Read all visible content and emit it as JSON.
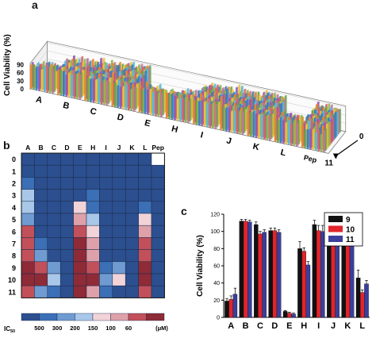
{
  "panels": {
    "a": "a",
    "b": "b",
    "c": "c"
  },
  "colors": {
    "ic50_scale": [
      "#2c4f8f",
      "#3b6fb6",
      "#6f9bd1",
      "#a9c7e8",
      "#f1d3d8",
      "#dea1aa",
      "#c2505a",
      "#8e2b37"
    ],
    "series_9": "#111111",
    "series_10": "#e0252b",
    "series_11": "#3a3f9c"
  },
  "chart_data": [
    {
      "type": "bar",
      "panel": "a",
      "title": "",
      "zlabel": "Cell Viability (%)",
      "z_ticks": [
        "90",
        "60",
        "30",
        "0"
      ],
      "x_groups": [
        "A",
        "B",
        "C",
        "D",
        "E",
        "H",
        "I",
        "J",
        "K",
        "L",
        "Pep"
      ],
      "depth_ticks": [
        "0",
        "11"
      ],
      "depth_range": [
        0,
        11
      ]
    },
    {
      "type": "heatmap",
      "panel": "b",
      "columns": [
        "A",
        "B",
        "C",
        "D",
        "E",
        "H",
        "I",
        "J",
        "K",
        "L",
        "Pep"
      ],
      "rows": [
        "0",
        "1",
        "2",
        "3",
        "4",
        "5",
        "6",
        "7",
        "8",
        "9",
        "10",
        "11"
      ],
      "values": [
        [
          0,
          0,
          0,
          0,
          0,
          0,
          0,
          0,
          0,
          0,
          -1
        ],
        [
          0,
          0,
          0,
          0,
          0,
          0,
          0,
          0,
          0,
          0,
          0
        ],
        [
          1,
          0,
          0,
          0,
          0,
          0,
          0,
          0,
          0,
          0,
          0
        ],
        [
          3,
          0,
          0,
          0,
          0,
          1,
          0,
          0,
          0,
          0,
          0
        ],
        [
          3,
          0,
          0,
          0,
          4,
          1,
          0,
          0,
          0,
          1,
          0
        ],
        [
          2,
          0,
          0,
          0,
          5,
          3,
          0,
          0,
          0,
          4,
          0
        ],
        [
          6,
          0,
          0,
          0,
          6,
          4,
          0,
          0,
          0,
          5,
          0
        ],
        [
          6,
          1,
          0,
          0,
          7,
          5,
          0,
          0,
          0,
          6,
          0
        ],
        [
          6,
          2,
          0,
          0,
          7,
          5,
          0,
          0,
          0,
          6,
          0
        ],
        [
          7,
          6,
          2,
          0,
          7,
          6,
          1,
          2,
          0,
          7,
          0
        ],
        [
          7,
          7,
          3,
          0,
          7,
          7,
          2,
          4,
          0,
          7,
          0
        ],
        [
          6,
          2,
          1,
          0,
          7,
          5,
          1,
          0,
          0,
          6,
          0
        ]
      ],
      "legend_label": "IC",
      "legend_sub": "50",
      "legend_ticks": [
        "500",
        "300",
        "200",
        "150",
        "100",
        "60",
        "(μM)"
      ]
    },
    {
      "type": "bar",
      "panel": "c",
      "categories": [
        "A",
        "B",
        "C",
        "D",
        "E",
        "H",
        "I",
        "J",
        "K",
        "L"
      ],
      "series": [
        {
          "name": "9",
          "values": [
            19,
            112,
            108,
            101,
            7,
            80,
            108,
            86,
            103,
            46
          ],
          "errors": [
            3,
            2,
            3,
            3,
            1,
            8,
            5,
            4,
            3,
            9
          ]
        },
        {
          "name": "10",
          "values": [
            21,
            112,
            97,
            101,
            5,
            77,
            101,
            86,
            101,
            29
          ],
          "errors": [
            4,
            2,
            3,
            3,
            1,
            4,
            6,
            5,
            3,
            3
          ]
        },
        {
          "name": "11",
          "values": [
            27,
            111,
            99,
            99,
            4,
            61,
            100,
            87,
            93,
            39
          ],
          "errors": [
            7,
            2,
            3,
            3,
            1,
            4,
            7,
            8,
            4,
            4
          ]
        }
      ],
      "ylabel": "Cell Viability (%)",
      "ylim": [
        0,
        120
      ],
      "yticks": [
        "0",
        "20",
        "40",
        "60",
        "80",
        "100",
        "120"
      ],
      "legend_position": "top-right"
    }
  ]
}
